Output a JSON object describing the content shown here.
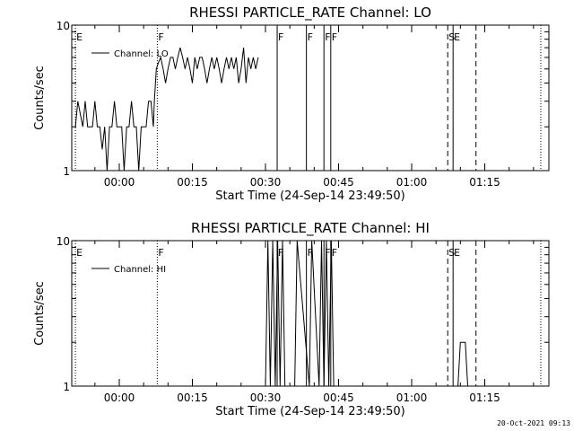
{
  "footer": {
    "timestamp": "20-Oct-2021 09:13"
  },
  "colors": {
    "background": "#ffffff",
    "foreground": "#000000"
  },
  "chart_data": [
    {
      "type": "line",
      "title": "RHESSI PARTICLE_RATE Channel: LO",
      "xlabel": "Start Time (24-Sep-14 23:49:50)",
      "ylabel": "Counts/sec",
      "yscale": "log",
      "ylim": [
        1,
        10
      ],
      "y_ticks": [
        "1",
        "10"
      ],
      "x_ticks": [
        "00:00",
        "00:15",
        "00:30",
        "00:45",
        "01:00",
        "01:15"
      ],
      "legend": {
        "placement": "top-left",
        "entries": [
          "Channel: LO"
        ]
      },
      "x_unit": "minutes after 00:00",
      "xlim": [
        -9,
        28.5
      ],
      "series": [
        {
          "name": "Channel: LO",
          "x": [
            -9,
            -8.5,
            -7.5,
            -7,
            -6.5,
            -6,
            -5.5,
            -5,
            -4.5,
            -4,
            -3.5,
            -3,
            -2.5,
            -2,
            -1.5,
            -1,
            -0.5,
            0,
            0.5,
            1,
            1.5,
            2,
            2.5,
            3,
            3.5,
            4,
            4.5,
            5,
            5.5,
            6,
            6.5,
            7,
            7.2,
            7.6,
            8,
            8.5,
            9,
            9.5,
            10,
            10.5,
            11,
            11.5,
            12,
            12.5,
            13,
            13.5,
            14,
            14.5,
            15,
            15.5,
            16,
            16.5,
            17,
            17.5,
            18,
            18.5,
            19,
            19.5,
            20,
            20.5,
            21,
            21.5,
            22,
            22.5,
            23,
            23.5,
            24,
            24.5,
            25,
            25.5,
            26,
            26.5,
            27,
            27.5,
            28,
            28.5
          ],
          "y": [
            2,
            3,
            2,
            3,
            2,
            2,
            2,
            3,
            2,
            2,
            1.4,
            2,
            1,
            2,
            2,
            3,
            2,
            2,
            2,
            1,
            2,
            2,
            3,
            2,
            2,
            1,
            2,
            2,
            2,
            3,
            3,
            2,
            3,
            5,
            5.5,
            6,
            5,
            4,
            5,
            6,
            6,
            5,
            6,
            7,
            6,
            5,
            6,
            5,
            4,
            6,
            5,
            6,
            6,
            5,
            4,
            5,
            6,
            5,
            6,
            5,
            4,
            5,
            6,
            5,
            6,
            5,
            6,
            4,
            5,
            7,
            4,
            6,
            5,
            6,
            5,
            6
          ]
        }
      ],
      "markers": [
        {
          "label": "E",
          "x": -9,
          "style": "dotted"
        },
        {
          "label": "F",
          "x": 7.8,
          "style": "dotted"
        },
        {
          "label": "F",
          "x": 32.4,
          "style": "solid"
        },
        {
          "label": "F",
          "x": 38.4,
          "style": "solid"
        },
        {
          "label": "F",
          "x": 42.0,
          "style": "solid"
        },
        {
          "label": "F",
          "x": 43.4,
          "style": "solid"
        },
        {
          "label": "S",
          "x": 67.4,
          "style": "dashed"
        },
        {
          "label": "E",
          "x": 68.5,
          "style": "solid"
        },
        {
          "label": "",
          "x": 73.2,
          "style": "dashed"
        },
        {
          "label": "",
          "x": 86.5,
          "style": "dotted"
        }
      ]
    },
    {
      "type": "line",
      "title": "RHESSI PARTICLE_RATE Channel: HI",
      "xlabel": "Start Time (24-Sep-14 23:49:50)",
      "ylabel": "Counts/sec",
      "yscale": "log",
      "ylim": [
        1,
        10
      ],
      "y_ticks": [
        "1",
        "10"
      ],
      "x_ticks": [
        "00:00",
        "00:15",
        "00:30",
        "00:45",
        "01:00",
        "01:15"
      ],
      "legend": {
        "placement": "top-left",
        "entries": [
          "Channel: HI"
        ]
      },
      "x_unit": "minutes after 00:00",
      "series": [
        {
          "name": "Channel: HI",
          "x": [
            -9,
            7.8,
            7.8,
            30,
            30.5,
            31,
            31.5,
            32,
            32.5,
            33,
            33.5,
            34,
            36,
            36.5,
            39,
            39.5,
            41,
            41.5,
            42,
            42.5,
            43,
            43.5,
            44,
            61,
            61.5,
            69,
            69.5,
            70,
            70.5,
            71,
            71.5,
            72,
            88
          ],
          "y": [
            1,
            1,
            1,
            1,
            10,
            1,
            10,
            1,
            10,
            1,
            10,
            1,
            1,
            10,
            1,
            10,
            1,
            10,
            1,
            10,
            1,
            10,
            1,
            1,
            1,
            1,
            1,
            2,
            2,
            2,
            1,
            1,
            1
          ]
        }
      ],
      "markers": [
        {
          "label": "E",
          "x": -9,
          "style": "dotted"
        },
        {
          "label": "F",
          "x": 7.8,
          "style": "dotted"
        },
        {
          "label": "F",
          "x": 32.4,
          "style": "solid"
        },
        {
          "label": "F",
          "x": 38.4,
          "style": "solid"
        },
        {
          "label": "F",
          "x": 42.0,
          "style": "solid"
        },
        {
          "label": "F",
          "x": 43.4,
          "style": "solid"
        },
        {
          "label": "S",
          "x": 67.4,
          "style": "dashed"
        },
        {
          "label": "E",
          "x": 68.5,
          "style": "solid"
        },
        {
          "label": "",
          "x": 73.2,
          "style": "dashed"
        },
        {
          "label": "",
          "x": 86.5,
          "style": "dotted"
        }
      ]
    }
  ]
}
